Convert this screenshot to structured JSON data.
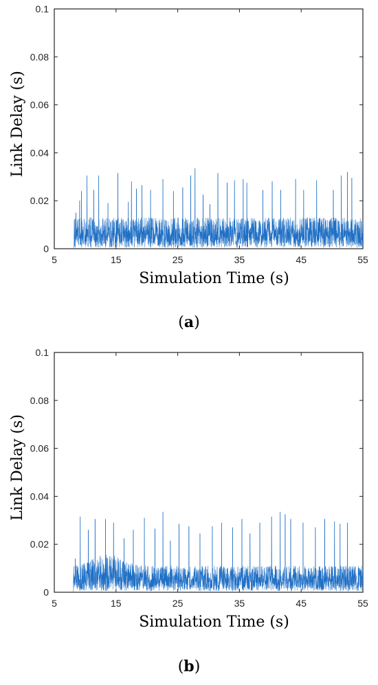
{
  "chart_data": [
    {
      "type": "line",
      "panel_label": "a",
      "xlabel": "Simulation Time (s)",
      "ylabel": "Link Delay (s)",
      "xlim": [
        5,
        55
      ],
      "ylim": [
        0,
        0.1
      ],
      "x_ticks": [
        "5",
        "15",
        "25",
        "35",
        "45",
        "55"
      ],
      "y_ticks": [
        "0",
        "0.02",
        "0.04",
        "0.06",
        "0.08",
        "0.1"
      ],
      "grid": false,
      "line_color": "#1f6fc5",
      "series": [
        {
          "description_samples": "dense noisy link delay trace starting at ~8.2 s",
          "baseline_range": [
            0.0,
            0.013
          ],
          "spikes": [
            {
              "x": 8.5,
              "y": 0.015
            },
            {
              "x": 9.1,
              "y": 0.02
            },
            {
              "x": 9.4,
              "y": 0.024
            },
            {
              "x": 10.3,
              "y": 0.0305
            },
            {
              "x": 11.4,
              "y": 0.0245
            },
            {
              "x": 12.2,
              "y": 0.0305
            },
            {
              "x": 13.7,
              "y": 0.019
            },
            {
              "x": 15.3,
              "y": 0.0315
            },
            {
              "x": 17.0,
              "y": 0.0195
            },
            {
              "x": 17.5,
              "y": 0.028
            },
            {
              "x": 18.3,
              "y": 0.025
            },
            {
              "x": 19.2,
              "y": 0.0265
            },
            {
              "x": 20.6,
              "y": 0.0245
            },
            {
              "x": 22.6,
              "y": 0.029
            },
            {
              "x": 24.3,
              "y": 0.024
            },
            {
              "x": 25.8,
              "y": 0.0255
            },
            {
              "x": 27.1,
              "y": 0.0305
            },
            {
              "x": 27.8,
              "y": 0.0335
            },
            {
              "x": 29.1,
              "y": 0.0225
            },
            {
              "x": 30.2,
              "y": 0.0185
            },
            {
              "x": 31.5,
              "y": 0.0315
            },
            {
              "x": 33.0,
              "y": 0.0275
            },
            {
              "x": 34.2,
              "y": 0.0285
            },
            {
              "x": 35.6,
              "y": 0.029
            },
            {
              "x": 36.2,
              "y": 0.0275
            },
            {
              "x": 38.8,
              "y": 0.0245
            },
            {
              "x": 40.3,
              "y": 0.028
            },
            {
              "x": 41.7,
              "y": 0.0245
            },
            {
              "x": 44.1,
              "y": 0.029
            },
            {
              "x": 45.4,
              "y": 0.0245
            },
            {
              "x": 47.5,
              "y": 0.0285
            },
            {
              "x": 50.2,
              "y": 0.0245
            },
            {
              "x": 51.5,
              "y": 0.0305
            },
            {
              "x": 52.5,
              "y": 0.032
            },
            {
              "x": 53.2,
              "y": 0.0295
            }
          ]
        }
      ]
    },
    {
      "type": "line",
      "panel_label": "b",
      "xlabel": "Simulation Time (s)",
      "ylabel": "Link Delay (s)",
      "xlim": [
        5,
        55
      ],
      "ylim": [
        0,
        0.1
      ],
      "x_ticks": [
        "5",
        "15",
        "25",
        "35",
        "45",
        "55"
      ],
      "y_ticks": [
        "0",
        "0.02",
        "0.04",
        "0.06",
        "0.08",
        "0.1"
      ],
      "grid": false,
      "line_color": "#1f6fc5",
      "series": [
        {
          "baseline_range": [
            0.0,
            0.016
          ],
          "spikes": [
            {
              "x": 8.4,
              "y": 0.014
            },
            {
              "x": 9.2,
              "y": 0.0315
            },
            {
              "x": 10.5,
              "y": 0.026
            },
            {
              "x": 11.6,
              "y": 0.0305
            },
            {
              "x": 13.3,
              "y": 0.0305
            },
            {
              "x": 14.6,
              "y": 0.029
            },
            {
              "x": 16.3,
              "y": 0.0225
            },
            {
              "x": 17.8,
              "y": 0.026
            },
            {
              "x": 19.6,
              "y": 0.031
            },
            {
              "x": 21.3,
              "y": 0.0265
            },
            {
              "x": 22.6,
              "y": 0.0335
            },
            {
              "x": 23.8,
              "y": 0.0215
            },
            {
              "x": 25.2,
              "y": 0.0285
            },
            {
              "x": 26.8,
              "y": 0.0275
            },
            {
              "x": 28.6,
              "y": 0.0245
            },
            {
              "x": 30.6,
              "y": 0.0275
            },
            {
              "x": 32.1,
              "y": 0.029
            },
            {
              "x": 33.9,
              "y": 0.027
            },
            {
              "x": 35.4,
              "y": 0.0305
            },
            {
              "x": 36.7,
              "y": 0.0245
            },
            {
              "x": 38.3,
              "y": 0.029
            },
            {
              "x": 40.2,
              "y": 0.0315
            },
            {
              "x": 41.6,
              "y": 0.0335
            },
            {
              "x": 42.4,
              "y": 0.0325
            },
            {
              "x": 43.3,
              "y": 0.0305
            },
            {
              "x": 45.3,
              "y": 0.029
            },
            {
              "x": 47.3,
              "y": 0.027
            },
            {
              "x": 48.8,
              "y": 0.0305
            },
            {
              "x": 50.4,
              "y": 0.0295
            },
            {
              "x": 51.3,
              "y": 0.0285
            },
            {
              "x": 52.5,
              "y": 0.029
            }
          ]
        }
      ]
    }
  ],
  "captions": [
    {
      "open": "(",
      "letter": "a",
      "close": ")"
    },
    {
      "open": "(",
      "letter": "b",
      "close": ")"
    }
  ]
}
